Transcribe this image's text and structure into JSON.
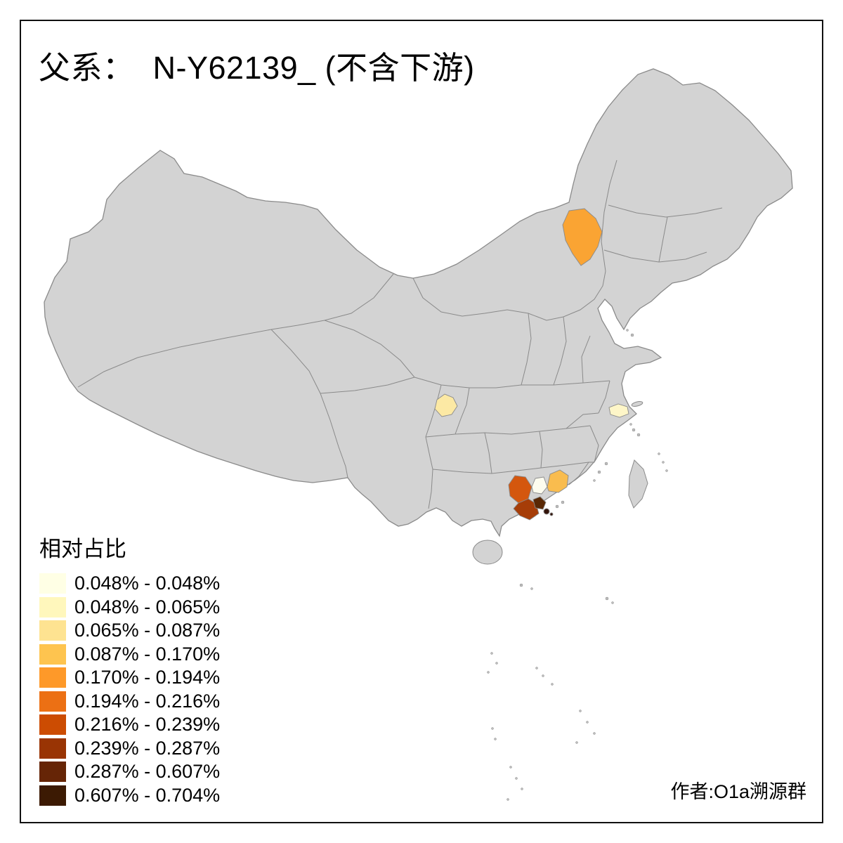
{
  "title": "父系：  N-Y62139_ (不含下游)",
  "attribution": "作者:O1a溯源群",
  "legend": {
    "title": "相对占比",
    "items": [
      {
        "label": "0.048% - 0.048%",
        "color": "#FFFFE5"
      },
      {
        "label": "0.048% - 0.065%",
        "color": "#FFF7BC"
      },
      {
        "label": "0.065% - 0.087%",
        "color": "#FEE391"
      },
      {
        "label": "0.087% - 0.170%",
        "color": "#FEC44F"
      },
      {
        "label": "0.170% - 0.194%",
        "color": "#FE9929"
      },
      {
        "label": "0.194% - 0.216%",
        "color": "#EC7014"
      },
      {
        "label": "0.216% - 0.239%",
        "color": "#CC4C02"
      },
      {
        "label": "0.239% - 0.287%",
        "color": "#993404"
      },
      {
        "label": "0.287% - 0.607%",
        "color": "#662506"
      },
      {
        "label": "0.607% - 0.704%",
        "color": "#3C1A03"
      }
    ]
  },
  "map": {
    "land_fill": "#D3D3D3",
    "border_color": "#8A8A8A",
    "island_dot_color": "#BDBDBD",
    "background": "#FFFFFF",
    "regions": {
      "chifeng_orange": {
        "color": "#FAA433"
      },
      "chongqing_pale_yellow": {
        "color": "#FCE9A4"
      },
      "shanghai_cream": {
        "color": "#FEF6C8"
      },
      "south_dark_orange": {
        "color": "#D4570E"
      },
      "south_red_brown": {
        "color": "#A63D08"
      },
      "south_cream_white": {
        "color": "#FDFCEF"
      },
      "south_medium_orange": {
        "color": "#F9BC4E"
      },
      "delta_dark_brown": {
        "color": "#5A2805"
      },
      "delta_darkest_brown": {
        "color": "#33140A"
      }
    }
  }
}
